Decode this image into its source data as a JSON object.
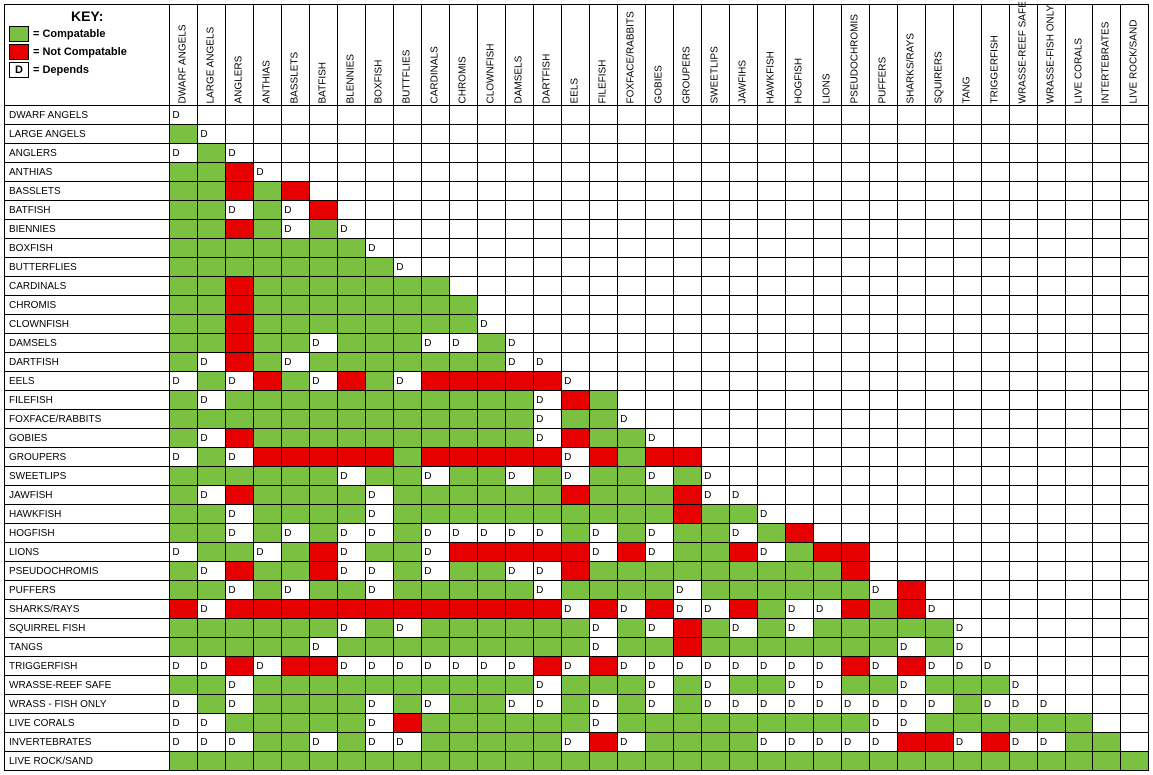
{
  "key": {
    "title": "KEY:",
    "compatible_label": "= Compatable",
    "not_compatible_label": "= Not Compatable",
    "depends_label": "= Depends",
    "depends_letter": "D",
    "compatible_color": "#7ac142",
    "not_compatible_color": "#e60000",
    "blank_color": "#ffffff",
    "border_color": "#000000"
  },
  "col_headers": [
    "DWARF ANGELS",
    "LARGE ANGELS",
    "ANGLERS",
    "ANTHIAS",
    "BASSLETS",
    "BATFISH",
    "BLENNIES",
    "BOXFISH",
    "BUTTFLIES",
    "CARDINALS",
    "CHROMIS",
    "CLOWNFISH",
    "DAMSELS",
    "DARTFISH",
    "EELS",
    "FILEFISH",
    "FOXFACE/RABBITS",
    "GOBIES",
    "GROUPERS",
    "SWEETLIPS",
    "JAWFIHS",
    "HAWKFISH",
    "HOGFISH",
    "LIONS",
    "PSEUDOCHROMIS",
    "PUFFERS",
    "SHARKS/RAYS",
    "SQUIRERS",
    "TANG",
    "TRIGGERFISH",
    "WRASSE-REEF SAFE",
    "WRASSE-FISH ONLY",
    "LIVE CORALS",
    "INTERTEBRATES",
    "LIVE ROCK/SAND"
  ],
  "row_headers": [
    "DWARF ANGELS",
    "LARGE ANGELS",
    "ANGLERS",
    "ANTHIAS",
    "BASSLETS",
    "BATFISH",
    "BIENNIES",
    "BOXFISH",
    "BUTTERFLIES",
    "CARDINALS",
    "CHROMIS",
    "CLOWNFISH",
    "DAMSELS",
    "DARTFISH",
    "EELS",
    "FILEFISH",
    "FOXFACE/RABBITS",
    "GOBIES",
    "GROUPERS",
    "SWEETLIPS",
    "JAWFISH",
    "HAWKFISH",
    "HOGFISH",
    "LIONS",
    "PSEUDOCHROMIS",
    "PUFFERS",
    "SHARKS/RAYS",
    "SQUIRREL FISH",
    "TANGS",
    "TRIGGERFISH",
    "WRASSE-REEF SAFE",
    "WRASS - FISH ONLY",
    "LIVE CORALS",
    "INVERTEBRATES",
    "LIVE ROCK/SAND"
  ],
  "legend_codes": {
    "C": "compatible",
    "N": "not_compatible",
    "D": "depends",
    "": "blank"
  },
  "matrix": [
    [
      "D",
      "",
      "",
      "",
      "",
      "",
      "",
      "",
      "",
      "",
      "",
      "",
      "",
      "",
      "",
      "",
      "",
      "",
      "",
      "",
      "",
      "",
      "",
      "",
      "",
      "",
      "",
      "",
      "",
      "",
      "",
      "",
      "",
      "",
      ""
    ],
    [
      "C",
      "D",
      "",
      "",
      "",
      "",
      "",
      "",
      "",
      "",
      "",
      "",
      "",
      "",
      "",
      "",
      "",
      "",
      "",
      "",
      "",
      "",
      "",
      "",
      "",
      "",
      "",
      "",
      "",
      "",
      "",
      "",
      "",
      "",
      ""
    ],
    [
      "D",
      "C",
      "D",
      "",
      "",
      "",
      "",
      "",
      "",
      "",
      "",
      "",
      "",
      "",
      "",
      "",
      "",
      "",
      "",
      "",
      "",
      "",
      "",
      "",
      "",
      "",
      "",
      "",
      "",
      "",
      "",
      "",
      "",
      "",
      ""
    ],
    [
      "C",
      "C",
      "N",
      "D",
      "",
      "",
      "",
      "",
      "",
      "",
      "",
      "",
      "",
      "",
      "",
      "",
      "",
      "",
      "",
      "",
      "",
      "",
      "",
      "",
      "",
      "",
      "",
      "",
      "",
      "",
      "",
      "",
      "",
      "",
      ""
    ],
    [
      "C",
      "C",
      "N",
      "C",
      "N",
      "",
      "",
      "",
      "",
      "",
      "",
      "",
      "",
      "",
      "",
      "",
      "",
      "",
      "",
      "",
      "",
      "",
      "",
      "",
      "",
      "",
      "",
      "",
      "",
      "",
      "",
      "",
      "",
      "",
      ""
    ],
    [
      "C",
      "C",
      "D",
      "C",
      "D",
      "N",
      "",
      "",
      "",
      "",
      "",
      "",
      "",
      "",
      "",
      "",
      "",
      "",
      "",
      "",
      "",
      "",
      "",
      "",
      "",
      "",
      "",
      "",
      "",
      "",
      "",
      "",
      "",
      "",
      ""
    ],
    [
      "C",
      "C",
      "N",
      "C",
      "D",
      "C",
      "D",
      "",
      "",
      "",
      "",
      "",
      "",
      "",
      "",
      "",
      "",
      "",
      "",
      "",
      "",
      "",
      "",
      "",
      "",
      "",
      "",
      "",
      "",
      "",
      "",
      "",
      "",
      "",
      ""
    ],
    [
      "C",
      "C",
      "C",
      "C",
      "C",
      "C",
      "C",
      "D",
      "",
      "",
      "",
      "",
      "",
      "",
      "",
      "",
      "",
      "",
      "",
      "",
      "",
      "",
      "",
      "",
      "",
      "",
      "",
      "",
      "",
      "",
      "",
      "",
      "",
      "",
      ""
    ],
    [
      "C",
      "C",
      "C",
      "C",
      "C",
      "C",
      "C",
      "C",
      "D",
      "",
      "",
      "",
      "",
      "",
      "",
      "",
      "",
      "",
      "",
      "",
      "",
      "",
      "",
      "",
      "",
      "",
      "",
      "",
      "",
      "",
      "",
      "",
      "",
      "",
      ""
    ],
    [
      "C",
      "C",
      "N",
      "C",
      "C",
      "C",
      "C",
      "C",
      "C",
      "C",
      "",
      "",
      "",
      "",
      "",
      "",
      "",
      "",
      "",
      "",
      "",
      "",
      "",
      "",
      "",
      "",
      "",
      "",
      "",
      "",
      "",
      "",
      "",
      "",
      ""
    ],
    [
      "C",
      "C",
      "N",
      "C",
      "C",
      "C",
      "C",
      "C",
      "C",
      "C",
      "C",
      "",
      "",
      "",
      "",
      "",
      "",
      "",
      "",
      "",
      "",
      "",
      "",
      "",
      "",
      "",
      "",
      "",
      "",
      "",
      "",
      "",
      "",
      "",
      ""
    ],
    [
      "C",
      "C",
      "N",
      "C",
      "C",
      "C",
      "C",
      "C",
      "C",
      "C",
      "C",
      "D",
      "",
      "",
      "",
      "",
      "",
      "",
      "",
      "",
      "",
      "",
      "",
      "",
      "",
      "",
      "",
      "",
      "",
      "",
      "",
      "",
      "",
      "",
      ""
    ],
    [
      "C",
      "C",
      "N",
      "C",
      "C",
      "D",
      "C",
      "C",
      "C",
      "D",
      "D",
      "C",
      "D",
      "",
      "",
      "",
      "",
      "",
      "",
      "",
      "",
      "",
      "",
      "",
      "",
      "",
      "",
      "",
      "",
      "",
      "",
      "",
      "",
      "",
      ""
    ],
    [
      "C",
      "D",
      "N",
      "C",
      "D",
      "C",
      "C",
      "C",
      "C",
      "C",
      "C",
      "C",
      "D",
      "D",
      "",
      "",
      "",
      "",
      "",
      "",
      "",
      "",
      "",
      "",
      "",
      "",
      "",
      "",
      "",
      "",
      "",
      "",
      "",
      "",
      ""
    ],
    [
      "D",
      "C",
      "D",
      "N",
      "C",
      "D",
      "N",
      "C",
      "D",
      "N",
      "N",
      "N",
      "N",
      "N",
      "D",
      "",
      "",
      "",
      "",
      "",
      "",
      "",
      "",
      "",
      "",
      "",
      "",
      "",
      "",
      "",
      "",
      "",
      "",
      "",
      ""
    ],
    [
      "C",
      "D",
      "C",
      "C",
      "C",
      "C",
      "C",
      "C",
      "C",
      "C",
      "C",
      "C",
      "C",
      "D",
      "N",
      "C",
      "",
      "",
      "",
      "",
      "",
      "",
      "",
      "",
      "",
      "",
      "",
      "",
      "",
      "",
      "",
      "",
      "",
      "",
      ""
    ],
    [
      "C",
      "C",
      "C",
      "C",
      "C",
      "C",
      "C",
      "C",
      "C",
      "C",
      "C",
      "C",
      "C",
      "D",
      "C",
      "C",
      "D",
      "",
      "",
      "",
      "",
      "",
      "",
      "",
      "",
      "",
      "",
      "",
      "",
      "",
      "",
      "",
      "",
      "",
      ""
    ],
    [
      "C",
      "D",
      "N",
      "C",
      "C",
      "C",
      "C",
      "C",
      "C",
      "C",
      "C",
      "C",
      "C",
      "D",
      "N",
      "C",
      "C",
      "D",
      "",
      "",
      "",
      "",
      "",
      "",
      "",
      "",
      "",
      "",
      "",
      "",
      "",
      "",
      "",
      "",
      ""
    ],
    [
      "D",
      "C",
      "D",
      "N",
      "N",
      "N",
      "N",
      "N",
      "C",
      "N",
      "N",
      "N",
      "N",
      "N",
      "D",
      "N",
      "C",
      "N",
      "N",
      "",
      "",
      "",
      "",
      "",
      "",
      "",
      "",
      "",
      "",
      "",
      "",
      "",
      "",
      "",
      ""
    ],
    [
      "C",
      "C",
      "C",
      "C",
      "C",
      "C",
      "D",
      "C",
      "C",
      "D",
      "C",
      "C",
      "D",
      "C",
      "D",
      "C",
      "C",
      "D",
      "C",
      "D",
      "",
      "",
      "",
      "",
      "",
      "",
      "",
      "",
      "",
      "",
      "",
      "",
      "",
      "",
      ""
    ],
    [
      "C",
      "D",
      "N",
      "C",
      "C",
      "C",
      "C",
      "D",
      "C",
      "C",
      "C",
      "C",
      "C",
      "C",
      "N",
      "C",
      "C",
      "C",
      "N",
      "D",
      "D",
      "",
      "",
      "",
      "",
      "",
      "",
      "",
      "",
      "",
      "",
      "",
      "",
      "",
      ""
    ],
    [
      "C",
      "C",
      "D",
      "C",
      "C",
      "C",
      "C",
      "D",
      "C",
      "C",
      "C",
      "C",
      "C",
      "C",
      "C",
      "C",
      "C",
      "C",
      "N",
      "C",
      "C",
      "D",
      "",
      "",
      "",
      "",
      "",
      "",
      "",
      "",
      "",
      "",
      "",
      "",
      ""
    ],
    [
      "C",
      "C",
      "D",
      "C",
      "D",
      "C",
      "D",
      "D",
      "C",
      "D",
      "D",
      "D",
      "D",
      "D",
      "C",
      "D",
      "C",
      "D",
      "C",
      "C",
      "D",
      "C",
      "N",
      "",
      "",
      "",
      "",
      "",
      "",
      "",
      "",
      "",
      "",
      "",
      ""
    ],
    [
      "D",
      "C",
      "C",
      "D",
      "C",
      "N",
      "D",
      "C",
      "C",
      "D",
      "N",
      "N",
      "N",
      "N",
      "N",
      "D",
      "N",
      "D",
      "C",
      "C",
      "N",
      "D",
      "C",
      "N",
      "N",
      "",
      "",
      "",
      "",
      "",
      "",
      "",
      "",
      "",
      ""
    ],
    [
      "C",
      "D",
      "N",
      "C",
      "C",
      "N",
      "D",
      "D",
      "C",
      "D",
      "C",
      "C",
      "D",
      "D",
      "N",
      "C",
      "C",
      "C",
      "C",
      "C",
      "C",
      "C",
      "C",
      "C",
      "N",
      "",
      "",
      "",
      "",
      "",
      "",
      "",
      "",
      "",
      ""
    ],
    [
      "C",
      "C",
      "D",
      "C",
      "D",
      "C",
      "C",
      "D",
      "C",
      "C",
      "C",
      "C",
      "C",
      "D",
      "C",
      "C",
      "C",
      "C",
      "D",
      "C",
      "C",
      "C",
      "C",
      "C",
      "C",
      "D",
      "N",
      "",
      "",
      "",
      "",
      "",
      "",
      "",
      ""
    ],
    [
      "N",
      "D",
      "N",
      "N",
      "N",
      "N",
      "N",
      "N",
      "N",
      "N",
      "N",
      "N",
      "N",
      "N",
      "D",
      "N",
      "D",
      "N",
      "D",
      "D",
      "N",
      "C",
      "D",
      "D",
      "N",
      "C",
      "N",
      "D",
      "",
      "",
      "",
      "",
      "",
      "",
      ""
    ],
    [
      "C",
      "C",
      "C",
      "C",
      "C",
      "C",
      "D",
      "C",
      "D",
      "C",
      "C",
      "C",
      "C",
      "C",
      "C",
      "D",
      "C",
      "D",
      "N",
      "C",
      "D",
      "C",
      "D",
      "C",
      "C",
      "C",
      "C",
      "C",
      "D",
      "",
      "",
      "",
      "",
      "",
      ""
    ],
    [
      "C",
      "C",
      "C",
      "C",
      "C",
      "D",
      "C",
      "C",
      "C",
      "C",
      "C",
      "C",
      "C",
      "C",
      "C",
      "D",
      "C",
      "C",
      "N",
      "C",
      "C",
      "C",
      "C",
      "C",
      "C",
      "C",
      "D",
      "C",
      "D",
      "",
      "",
      "",
      "",
      "",
      ""
    ],
    [
      "D",
      "D",
      "N",
      "D",
      "N",
      "N",
      "D",
      "D",
      "D",
      "D",
      "D",
      "D",
      "D",
      "N",
      "D",
      "N",
      "D",
      "D",
      "D",
      "D",
      "D",
      "D",
      "D",
      "D",
      "N",
      "D",
      "N",
      "D",
      "D",
      "D",
      "",
      "",
      "",
      "",
      ""
    ],
    [
      "C",
      "C",
      "D",
      "C",
      "C",
      "C",
      "C",
      "C",
      "C",
      "C",
      "C",
      "C",
      "C",
      "D",
      "C",
      "C",
      "C",
      "D",
      "C",
      "D",
      "C",
      "C",
      "D",
      "D",
      "C",
      "C",
      "D",
      "C",
      "C",
      "C",
      "D",
      "",
      "",
      "",
      ""
    ],
    [
      "D",
      "C",
      "D",
      "C",
      "C",
      "C",
      "C",
      "D",
      "C",
      "D",
      "C",
      "C",
      "D",
      "D",
      "C",
      "D",
      "C",
      "D",
      "C",
      "D",
      "D",
      "D",
      "D",
      "D",
      "D",
      "D",
      "D",
      "D",
      "C",
      "D",
      "D",
      "D",
      "",
      "",
      ""
    ],
    [
      "D",
      "D",
      "C",
      "C",
      "C",
      "C",
      "C",
      "D",
      "N",
      "C",
      "C",
      "C",
      "C",
      "C",
      "C",
      "D",
      "C",
      "C",
      "C",
      "C",
      "C",
      "C",
      "C",
      "C",
      "C",
      "D",
      "D",
      "C",
      "C",
      "C",
      "C",
      "C",
      "C",
      "",
      ""
    ],
    [
      "D",
      "D",
      "D",
      "C",
      "C",
      "D",
      "C",
      "D",
      "D",
      "C",
      "C",
      "C",
      "C",
      "C",
      "D",
      "N",
      "D",
      "C",
      "C",
      "C",
      "C",
      "D",
      "D",
      "D",
      "D",
      "D",
      "N",
      "N",
      "D",
      "N",
      "D",
      "D",
      "C",
      "C",
      ""
    ],
    [
      "C",
      "C",
      "C",
      "C",
      "C",
      "C",
      "C",
      "C",
      "C",
      "C",
      "C",
      "C",
      "C",
      "C",
      "C",
      "C",
      "C",
      "C",
      "C",
      "C",
      "C",
      "C",
      "C",
      "C",
      "C",
      "C",
      "C",
      "C",
      "C",
      "C",
      "C",
      "C",
      "C",
      "C",
      "C"
    ]
  ]
}
